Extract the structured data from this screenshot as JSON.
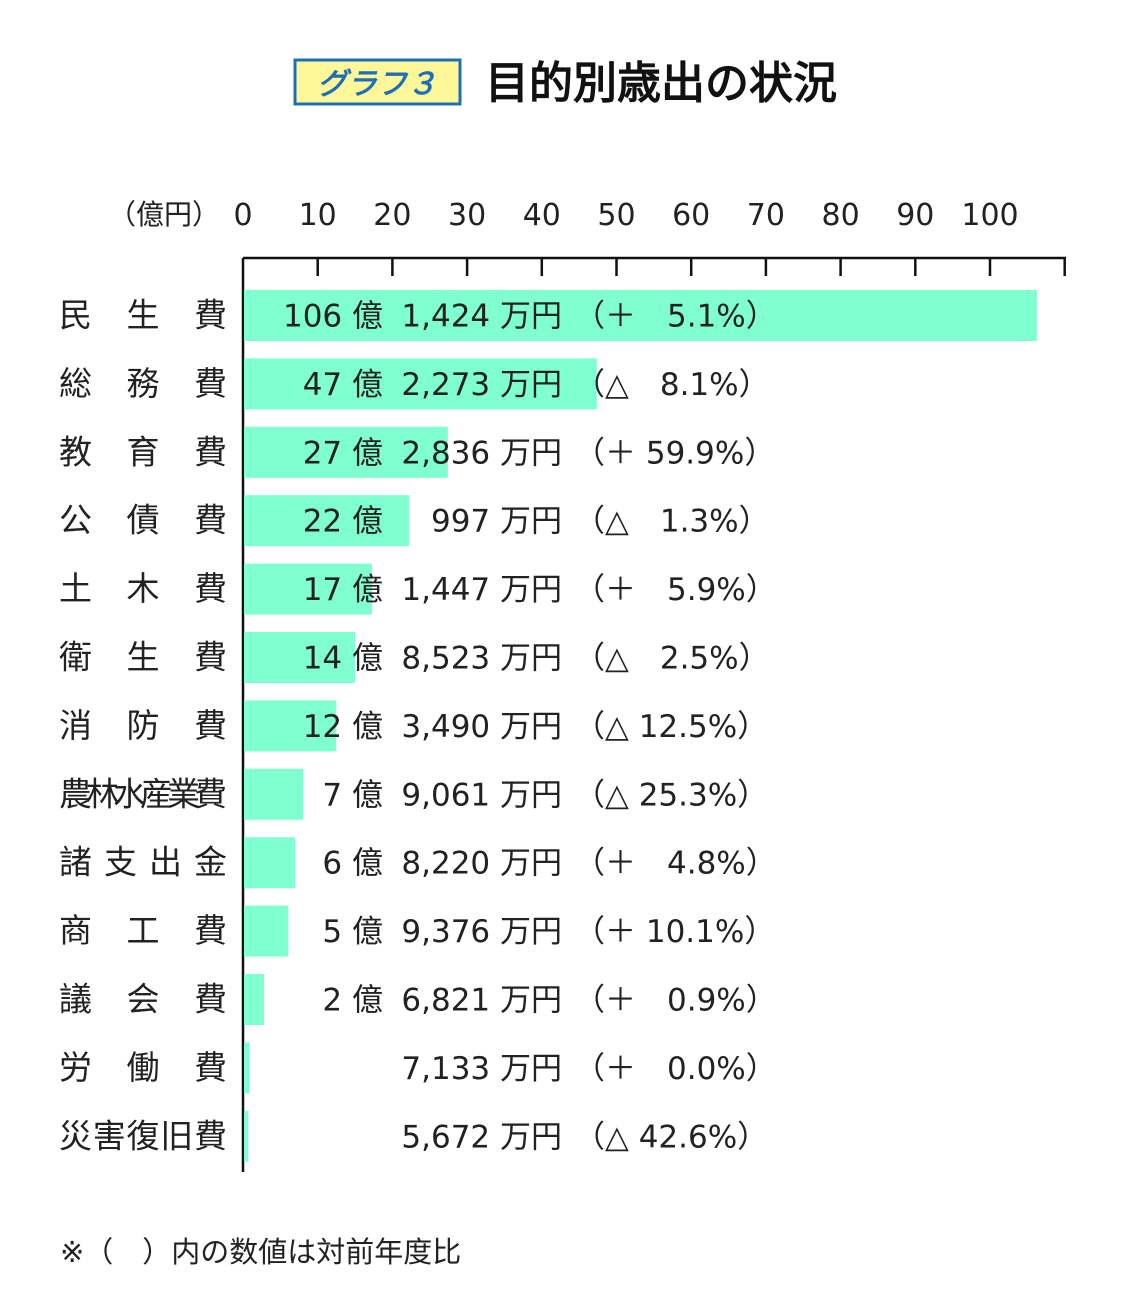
{
  "header": {
    "badge": "グラフ３",
    "title": "目的別歳出の状況"
  },
  "chart_data": {
    "type": "bar",
    "orientation": "horizontal",
    "unit_label": "（億円）",
    "xlim": [
      0,
      110
    ],
    "ticks": [
      0,
      10,
      20,
      30,
      40,
      50,
      60,
      70,
      80,
      90,
      100,
      110
    ],
    "tick_labels": [
      "0",
      "10",
      "20",
      "30",
      "40",
      "50",
      "60",
      "70",
      "80",
      "90",
      "100"
    ],
    "bar_color": "#80ffd0",
    "categories": [
      "民　生　費",
      "総　務　費",
      "教　育　費",
      "公　債　費",
      "土　木　費",
      "衛　生　費",
      "消　防　費",
      "農林水産業費",
      "諸支出金",
      "商　工　費",
      "議　会　費",
      "労　働　費",
      "災害復旧費"
    ],
    "values": [
      106.1424,
      47.2273,
      27.2836,
      22.0997,
      17.1447,
      14.8523,
      12.349,
      7.9061,
      6.822,
      5.9376,
      2.6821,
      0.7133,
      0.5672
    ],
    "value_labels": [
      {
        "oku": "106 億",
        "man": "1,424 万円",
        "change": "（＋　5.1%）"
      },
      {
        "oku": "47 億",
        "man": "2,273 万円",
        "change": "（△　8.1%）"
      },
      {
        "oku": "27 億",
        "man": "2,836 万円",
        "change": "（＋ 59.9%）"
      },
      {
        "oku": "22 億",
        "man": "997 万円",
        "change": "（△　1.3%）"
      },
      {
        "oku": "17 億",
        "man": "1,447 万円",
        "change": "（＋　5.9%）"
      },
      {
        "oku": "14 億",
        "man": "8,523 万円",
        "change": "（△　2.5%）"
      },
      {
        "oku": "12 億",
        "man": "3,490 万円",
        "change": "（△ 12.5%）"
      },
      {
        "oku": "7 億",
        "man": "9,061 万円",
        "change": "（△ 25.3%）"
      },
      {
        "oku": "6 億",
        "man": "8,220 万円",
        "change": "（＋　4.8%）"
      },
      {
        "oku": "5 億",
        "man": "9,376 万円",
        "change": "（＋ 10.1%）"
      },
      {
        "oku": "2 億",
        "man": "6,821 万円",
        "change": "（＋　0.9%）"
      },
      {
        "oku": "",
        "man": "7,133 万円",
        "change": "（＋　0.0%）"
      },
      {
        "oku": "",
        "man": "5,672 万円",
        "change": "（△ 42.6%）"
      }
    ],
    "note": "※（　）内の数値は対前年度比"
  }
}
